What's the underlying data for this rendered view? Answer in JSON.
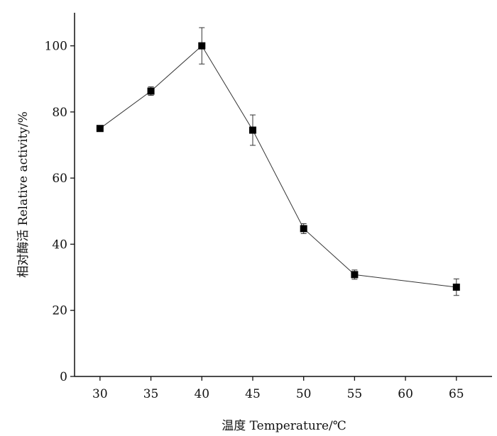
{
  "chart_data": {
    "type": "line",
    "title": "",
    "xlabel": "温度 Temperature/℃",
    "ylabel": "相对酶活 Relative activity/%",
    "x_ticks": [
      30,
      35,
      40,
      45,
      50,
      55,
      60,
      65
    ],
    "y_ticks": [
      0,
      20,
      40,
      60,
      80,
      100
    ],
    "xlim": [
      27.5,
      68.5
    ],
    "ylim": [
      0,
      110
    ],
    "grid": false,
    "legend": "none",
    "marker": "square",
    "series": [
      {
        "x": [
          30,
          35,
          40,
          45,
          50,
          55,
          65
        ],
        "values": [
          75,
          86.3,
          100,
          74.5,
          44.7,
          30.8,
          27
        ],
        "error": [
          0.8,
          1.3,
          5.5,
          4.6,
          1.5,
          1.4,
          2.5
        ]
      }
    ],
    "colors": {
      "line": "#333333",
      "marker": "#000000",
      "axis": "#111111"
    }
  }
}
